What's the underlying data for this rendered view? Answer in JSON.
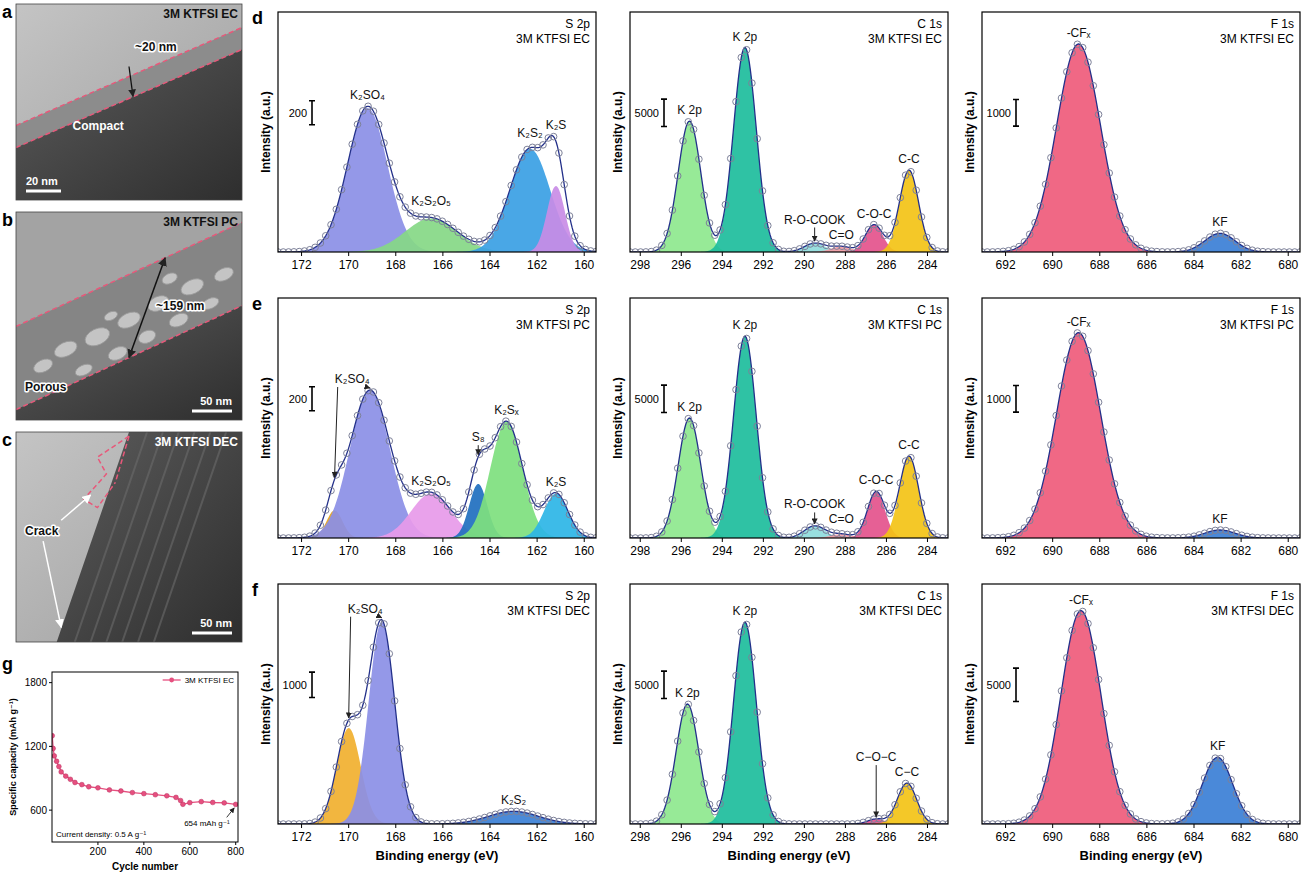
{
  "images": [
    {
      "panel": "a",
      "title": "3M KTFSI EC",
      "labels": [
        "~20 nm",
        "Compact"
      ],
      "scale_bar": "20 nm"
    },
    {
      "panel": "b",
      "title": "3M KTFSI PC",
      "labels": [
        "~159 nm",
        "Porous"
      ],
      "scale_bar": "50 nm"
    },
    {
      "panel": "c",
      "title": "3M KTFSI DEC",
      "labels": [
        "Crack"
      ],
      "scale_bar": "50 nm"
    }
  ],
  "chart_data": [
    {
      "type": "xps",
      "panel": "d",
      "title": "S 2p",
      "subtitle": "3M KTFSI EC",
      "y_label": "Intensity (a.u.)",
      "xlim": [
        173,
        159.5
      ],
      "xticks": [
        172,
        170,
        168,
        166,
        164,
        162,
        160
      ],
      "ylim": [
        0,
        2000
      ],
      "scale_bar": 200,
      "tick_labels": "x",
      "peaks": [
        {
          "center": 169.2,
          "height": 1200,
          "fwhm": 2.0,
          "color": "#8b8fe6"
        },
        {
          "center": 166.5,
          "height": 280,
          "fwhm": 2.6,
          "color": "#86d886"
        },
        {
          "center": 162.3,
          "height": 860,
          "fwhm": 2.0,
          "color": "#3a9fe4"
        },
        {
          "center": 161.2,
          "height": 550,
          "fwhm": 0.9,
          "color": "#c98ce6"
        }
      ],
      "annotations": [
        {
          "text": "K₂SO₄",
          "peaks": [
            0
          ]
        },
        {
          "text": "K₂S₂O₅",
          "peaks": [
            1
          ]
        },
        {
          "text": "K₂S₂",
          "peaks": [
            2
          ]
        },
        {
          "text": "K₂S",
          "peaks": [
            3
          ]
        }
      ]
    },
    {
      "type": "xps",
      "title": "C 1s",
      "subtitle": "3M KTFSI EC",
      "y_label": "Intensity (a.u.)",
      "xlim": [
        298.5,
        283
      ],
      "xticks": [
        298,
        296,
        294,
        292,
        290,
        288,
        286,
        284
      ],
      "ylim": [
        0,
        44000
      ],
      "scale_bar": 5000,
      "tick_labels": "x",
      "peaks": [
        {
          "center": 295.6,
          "height": 24000,
          "fwhm": 1.3,
          "color": "#8ee88e"
        },
        {
          "center": 292.9,
          "height": 37500,
          "fwhm": 1.3,
          "color": "#1dbd9c"
        },
        {
          "center": 289.5,
          "height": 1600,
          "fwhm": 1.2,
          "color": "#8fdcdc"
        },
        {
          "center": 288.2,
          "height": 1000,
          "fwhm": 1.2,
          "color": "#f29ca4"
        },
        {
          "center": 286.6,
          "height": 5000,
          "fwhm": 1.0,
          "color": "#e4528c"
        },
        {
          "center": 284.9,
          "height": 15000,
          "fwhm": 1.1,
          "color": "#f3c316"
        }
      ],
      "annotations": [
        {
          "text": "K 2p",
          "peaks": [
            0
          ]
        },
        {
          "text": "K 2p",
          "peaks": [
            1
          ]
        },
        {
          "text": "C-C",
          "peaks": [
            5
          ]
        },
        {
          "text": "C-O-C",
          "peaks": [
            4
          ]
        },
        {
          "text": "C=O",
          "peaks": [
            3
          ]
        },
        {
          "text": "R-O-COOK",
          "peaks": [
            2
          ]
        }
      ]
    },
    {
      "type": "xps",
      "title": "F 1s",
      "subtitle": "3M KTFSI EC",
      "y_label": "Intensity (a.u.)",
      "xlim": [
        693,
        679.5
      ],
      "xticks": [
        692,
        690,
        688,
        686,
        684,
        682,
        680
      ],
      "ylim": [
        0,
        9000
      ],
      "scale_bar": 1000,
      "tick_labels": "x",
      "peaks": [
        {
          "center": 688.9,
          "height": 7800,
          "fwhm": 2.2,
          "color": "#ef5b7b"
        },
        {
          "center": 682.9,
          "height": 700,
          "fwhm": 1.5,
          "color": "#3b7fd6"
        }
      ],
      "annotations": [
        {
          "text": "-CFₓ",
          "peaks": [
            0
          ]
        },
        {
          "text": "KF",
          "peaks": [
            1
          ]
        }
      ]
    },
    {
      "type": "xps",
      "panel": "e",
      "title": "S 2p",
      "subtitle": "3M KTFSI PC",
      "y_label": "Intensity (a.u.)",
      "xlim": [
        173,
        159.5
      ],
      "xticks": [
        172,
        170,
        168,
        166,
        164,
        162,
        160
      ],
      "ylim": [
        0,
        2000
      ],
      "scale_bar": 200,
      "tick_labels": "x",
      "peaks": [
        {
          "center": 170.6,
          "height": 230,
          "fwhm": 0.8,
          "color": "#e3a21f"
        },
        {
          "center": 169.1,
          "height": 1230,
          "fwhm": 2.0,
          "color": "#8b8fe6"
        },
        {
          "center": 166.5,
          "height": 370,
          "fwhm": 2.0,
          "color": "#e79ae9"
        },
        {
          "center": 164.5,
          "height": 450,
          "fwhm": 0.9,
          "color": "#1f6fbf"
        },
        {
          "center": 163.3,
          "height": 970,
          "fwhm": 1.6,
          "color": "#7ee07e"
        },
        {
          "center": 161.2,
          "height": 370,
          "fwhm": 1.2,
          "color": "#2cb5e6"
        }
      ],
      "annotations": [
        {
          "text": "K₂SO₄",
          "peaks": [
            0,
            1
          ]
        },
        {
          "text": "K₂S₂O₅",
          "peaks": [
            2
          ]
        },
        {
          "text": "S₈",
          "peaks": [
            3
          ]
        },
        {
          "text": "K₂Sₓ",
          "peaks": [
            4
          ]
        },
        {
          "text": "K₂S",
          "peaks": [
            5
          ]
        }
      ]
    },
    {
      "type": "xps",
      "title": "C 1s",
      "subtitle": "3M KTFSI PC",
      "y_label": "Intensity (a.u.)",
      "xlim": [
        298.5,
        283
      ],
      "xticks": [
        298,
        296,
        294,
        292,
        290,
        288,
        286,
        284
      ],
      "ylim": [
        0,
        44000
      ],
      "scale_bar": 5000,
      "tick_labels": "x",
      "peaks": [
        {
          "center": 295.6,
          "height": 22000,
          "fwhm": 1.3,
          "color": "#8ee88e"
        },
        {
          "center": 292.9,
          "height": 37000,
          "fwhm": 1.3,
          "color": "#1dbd9c"
        },
        {
          "center": 289.5,
          "height": 2200,
          "fwhm": 1.2,
          "color": "#8fdcdc"
        },
        {
          "center": 288.2,
          "height": 700,
          "fwhm": 1.2,
          "color": "#f29ca4"
        },
        {
          "center": 286.5,
          "height": 8500,
          "fwhm": 1.0,
          "color": "#e4528c"
        },
        {
          "center": 284.9,
          "height": 15000,
          "fwhm": 1.1,
          "color": "#f3c316"
        }
      ],
      "annotations": [
        {
          "text": "K 2p",
          "peaks": [
            0
          ]
        },
        {
          "text": "K 2p",
          "peaks": [
            1
          ]
        },
        {
          "text": "C-C",
          "peaks": [
            5
          ]
        },
        {
          "text": "C-O-C",
          "peaks": [
            4
          ]
        },
        {
          "text": "C=O",
          "peaks": [
            3
          ]
        },
        {
          "text": "R-O-COOK",
          "peaks": [
            2
          ]
        }
      ]
    },
    {
      "type": "xps",
      "title": "F 1s",
      "subtitle": "3M KTFSI PC",
      "y_label": "Intensity (a.u.)",
      "xlim": [
        693,
        679.5
      ],
      "xticks": [
        692,
        690,
        688,
        686,
        684,
        682,
        680
      ],
      "ylim": [
        0,
        9000
      ],
      "scale_bar": 1000,
      "tick_labels": "x",
      "peaks": [
        {
          "center": 688.9,
          "height": 7700,
          "fwhm": 2.2,
          "color": "#ef5b7b"
        },
        {
          "center": 682.9,
          "height": 300,
          "fwhm": 1.5,
          "color": "#3b7fd6"
        }
      ],
      "annotations": [
        {
          "text": "-CFₓ",
          "peaks": [
            0
          ]
        },
        {
          "text": "KF",
          "peaks": [
            1
          ]
        }
      ]
    },
    {
      "type": "xps",
      "panel": "f",
      "title": "S 2p",
      "subtitle": "3M KTFSI DEC",
      "y_label": "Intensity (a.u.)",
      "x_label": "Binding energy (eV)",
      "xlim": [
        173,
        159.5
      ],
      "xticks": [
        172,
        170,
        168,
        166,
        164,
        162,
        160
      ],
      "ylim": [
        0,
        9500
      ],
      "scale_bar": 1000,
      "tick_labels": "x",
      "peaks": [
        {
          "center": 170.0,
          "height": 3800,
          "fwhm": 1.2,
          "color": "#f1b02f"
        },
        {
          "center": 168.6,
          "height": 8000,
          "fwhm": 1.3,
          "color": "#8b8fe6"
        },
        {
          "center": 163.0,
          "height": 500,
          "fwhm": 2.5,
          "color": "#3b80d6"
        }
      ],
      "annotations": [
        {
          "text": "K₂SO₄",
          "peaks": [
            0,
            1
          ]
        },
        {
          "text": "K₂S₂",
          "peaks": [
            2
          ]
        }
      ]
    },
    {
      "type": "xps",
      "title": "C 1s",
      "subtitle": "3M KTFSI DEC",
      "y_label": "Intensity (a.u.)",
      "x_label": "Binding energy (eV)",
      "xlim": [
        298.5,
        283
      ],
      "xticks": [
        298,
        296,
        294,
        292,
        290,
        288,
        286,
        284
      ],
      "ylim": [
        0,
        44000
      ],
      "scale_bar": 5000,
      "tick_labels": "x",
      "peaks": [
        {
          "center": 295.7,
          "height": 22000,
          "fwhm": 1.3,
          "color": "#8ee88e"
        },
        {
          "center": 292.9,
          "height": 37000,
          "fwhm": 1.3,
          "color": "#1dbd9c"
        },
        {
          "center": 286.5,
          "height": 900,
          "fwhm": 1.0,
          "color": "#e4528c"
        },
        {
          "center": 285.0,
          "height": 7500,
          "fwhm": 1.1,
          "color": "#f3c316"
        }
      ],
      "annotations": [
        {
          "text": "K 2p",
          "peaks": [
            0
          ]
        },
        {
          "text": "K 2p",
          "peaks": [
            1
          ]
        },
        {
          "text": "C−C",
          "peaks": [
            3
          ]
        },
        {
          "text": "C−O−C",
          "peaks": [
            2
          ]
        }
      ]
    },
    {
      "type": "xps",
      "title": "F 1s",
      "subtitle": "3M KTFSI DEC",
      "y_label": "Intensity (a.u.)",
      "x_label": "Binding energy (eV)",
      "xlim": [
        693,
        679.5
      ],
      "xticks": [
        692,
        690,
        688,
        686,
        684,
        682,
        680
      ],
      "ylim": [
        0,
        36000
      ],
      "scale_bar": 5000,
      "tick_labels": "x",
      "peaks": [
        {
          "center": 688.8,
          "height": 32000,
          "fwhm": 2.0,
          "color": "#ef5b7b"
        },
        {
          "center": 683.0,
          "height": 10000,
          "fwhm": 1.5,
          "color": "#3b7fd6"
        }
      ],
      "annotations": [
        {
          "text": "-CFₓ",
          "peaks": [
            0
          ]
        },
        {
          "text": "KF",
          "peaks": [
            1
          ]
        }
      ]
    },
    {
      "type": "line",
      "panel": "g",
      "x_label": "Cycle number",
      "y_label": "Specific capacity (mAh g⁻¹)",
      "x": [
        1,
        5,
        10,
        20,
        30,
        40,
        60,
        80,
        100,
        130,
        160,
        200,
        250,
        300,
        350,
        400,
        450,
        500,
        540,
        560,
        570,
        600,
        650,
        700,
        750,
        800
      ],
      "series": [
        {
          "name": "3M KTFSI EC",
          "color": "#e6507f",
          "marker": "circle",
          "values": [
            1300,
            1180,
            1110,
            1060,
            1010,
            960,
            920,
            890,
            860,
            840,
            820,
            810,
            790,
            780,
            765,
            755,
            745,
            735,
            720,
            690,
            655,
            670,
            680,
            672,
            668,
            654
          ]
        }
      ],
      "xlim": [
        0,
        810
      ],
      "xticks": [
        200,
        400,
        600,
        800
      ],
      "ylim": [
        300,
        1900
      ],
      "yticks": [
        600,
        1200,
        1800
      ],
      "legend": "upper right",
      "annotations": [
        {
          "text": "654 mAh g⁻¹",
          "x": 800,
          "y": 654
        },
        {
          "text": "Current density: 0.5 A g⁻¹"
        }
      ]
    }
  ]
}
